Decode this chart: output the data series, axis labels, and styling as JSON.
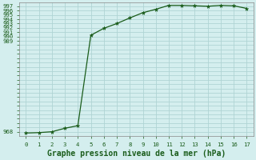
{
  "x": [
    0,
    1,
    2,
    3,
    4,
    5,
    6,
    7,
    8,
    9,
    10,
    11,
    12,
    13,
    14,
    15,
    16,
    17
  ],
  "y": [
    967.7,
    967.8,
    968.0,
    968.9,
    969.5,
    990.3,
    991.9,
    993.0,
    994.3,
    995.5,
    996.3,
    997.2,
    997.2,
    997.1,
    997.0,
    997.2,
    997.1,
    996.5
  ],
  "ylim": [
    967.0,
    997.8
  ],
  "xlim": [
    -0.5,
    17.5
  ],
  "line_color": "#1a5c1a",
  "marker_color": "#1a5c1a",
  "bg_color": "#d4eeee",
  "grid_color": "#b0d4d4",
  "text_color": "#1a5c1a",
  "xlabel": "Graphe pression niveau de la mer (hPa)",
  "xlabel_fontsize": 7.0,
  "ytick_min": 968,
  "ytick_max": 997,
  "visible_yticks": [
    968,
    989,
    990,
    991,
    992,
    993,
    994,
    995,
    996,
    997
  ]
}
